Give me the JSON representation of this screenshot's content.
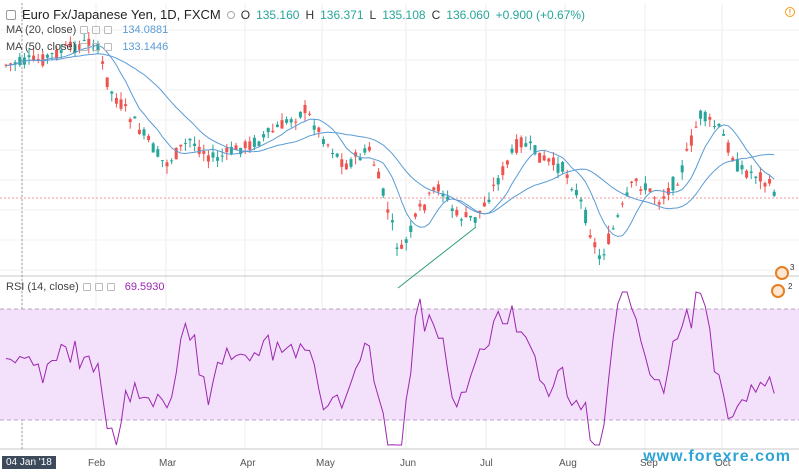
{
  "header": {
    "title": "Euro Fx/Japanese Yen, 1D, FXCM",
    "open_label": "O",
    "open_value": "135.160",
    "high_label": "H",
    "high_value": "136.371",
    "low_label": "L",
    "low_value": "135.108",
    "close_label": "C",
    "close_value": "136.060",
    "change": "+0.900 (+0.67%)"
  },
  "indicators": {
    "ma20_label": "MA (20, close)",
    "ma20_value": "134.0881",
    "ma50_label": "MA (50, close)",
    "ma50_value": "133.1446",
    "rsi_label": "RSI (14, close)",
    "rsi_value": "69.5930"
  },
  "time_axis": {
    "selected_date": "04 Jan '18",
    "months": [
      "Feb",
      "Mar",
      "Apr",
      "May",
      "Jun",
      "Jul",
      "Aug",
      "Sep",
      "Oct"
    ]
  },
  "events": [
    "3",
    "2"
  ],
  "watermark": "www.forexre.com",
  "colors": {
    "up": "#26a69a",
    "down": "#ef5350",
    "ma": "#5b9bd5",
    "trendline": "#2e9e72",
    "rsi": "#9c27b0",
    "rsi_band": "#f3e0fa"
  }
}
